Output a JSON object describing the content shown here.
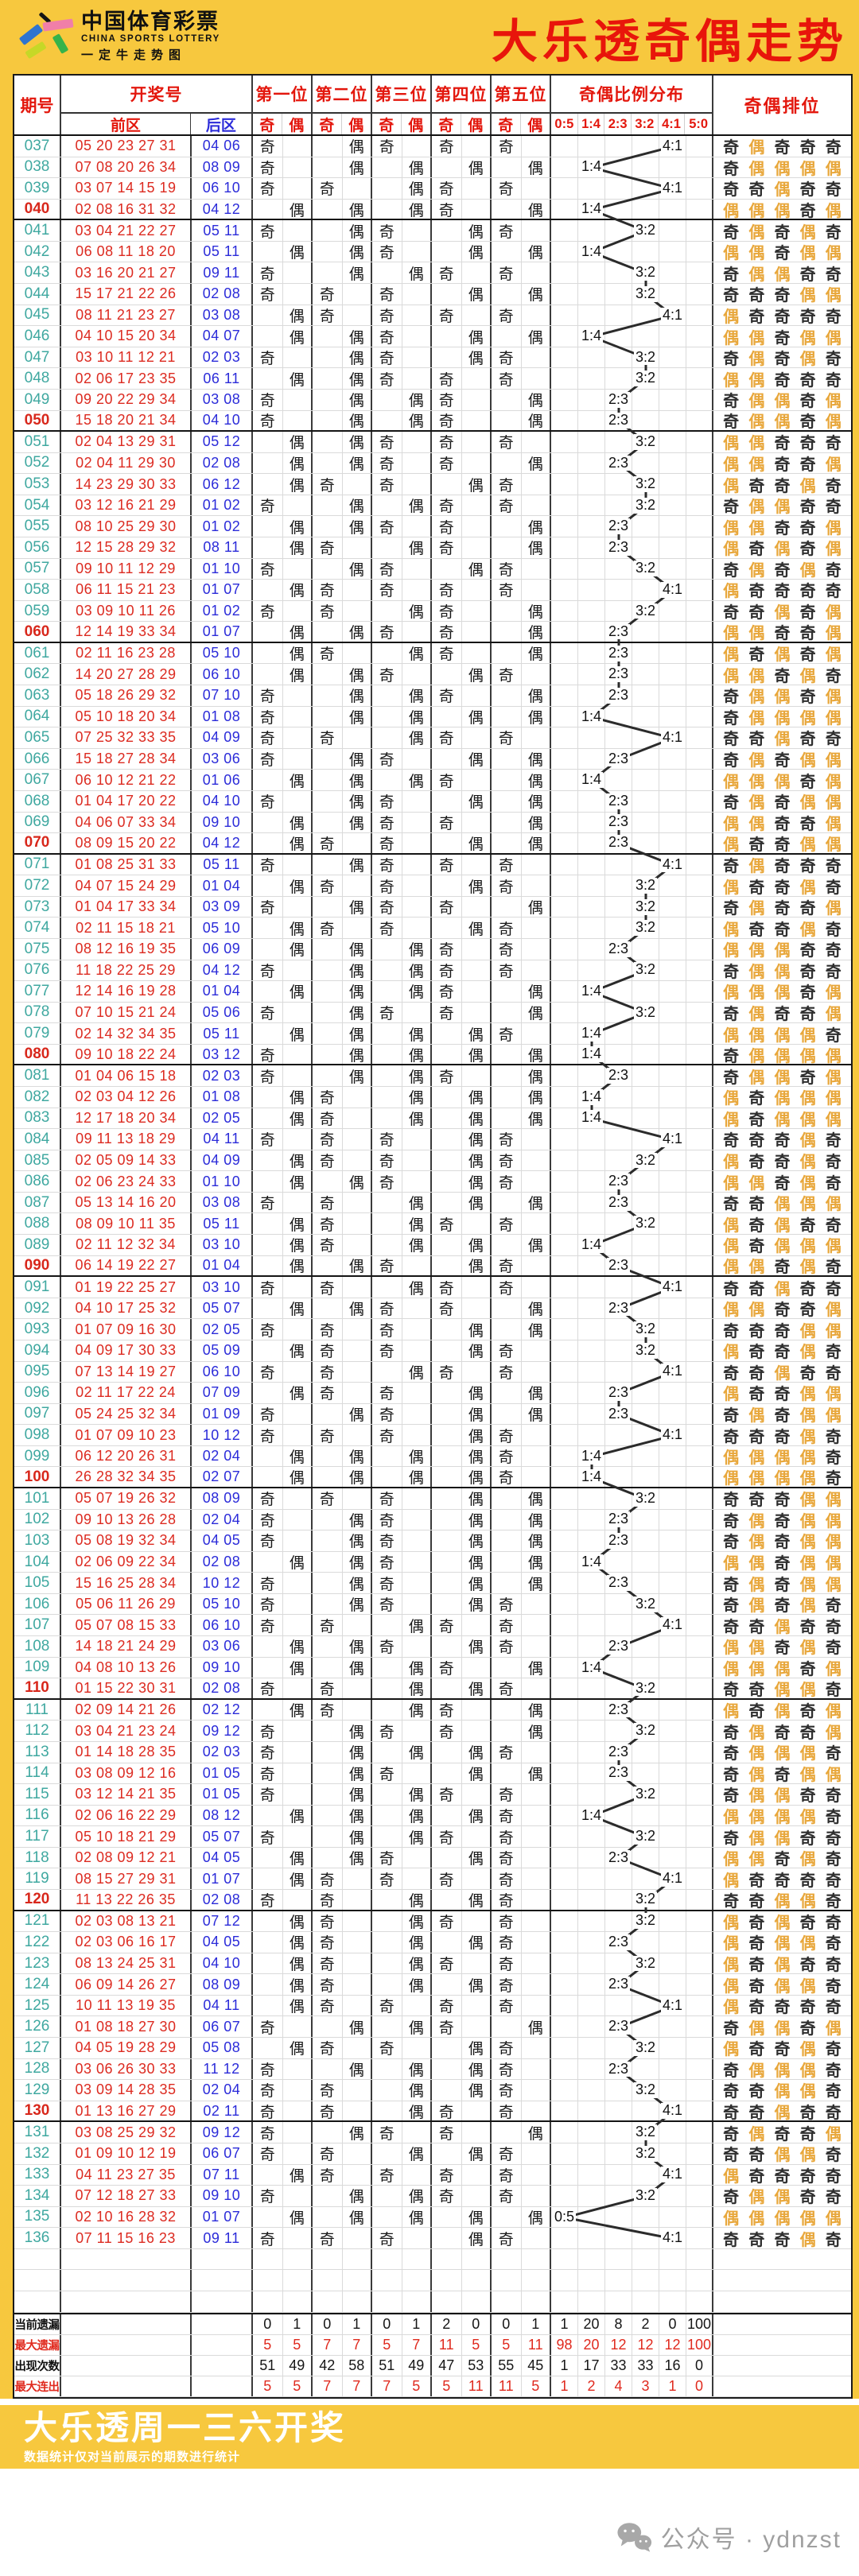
{
  "banner": {
    "logo": {
      "cn": "中国体育彩票",
      "en": "CHINA SPORTS LOTTERY",
      "sub": "一定牛走势图"
    },
    "title": "大乐透奇偶走势"
  },
  "header": {
    "period": "期号",
    "draw": "开奖号",
    "front": "前区",
    "back": "后区",
    "positions": [
      "第一位",
      "第二位",
      "第三位",
      "第四位",
      "第五位"
    ],
    "odd": "奇",
    "even": "偶",
    "ratio_title": "奇偶比例分布",
    "ratios": [
      "0:5",
      "1:4",
      "2:3",
      "3:2",
      "4:1",
      "5:0"
    ],
    "ranking": "奇偶排位"
  },
  "chart_data": {
    "type": "table",
    "title": "大乐透奇偶走势",
    "columns": [
      "期号",
      "前区",
      "后区",
      "第一位奇",
      "第一位偶",
      "第二位奇",
      "第二位偶",
      "第三位奇",
      "第三位偶",
      "第四位奇",
      "第四位偶",
      "第五位奇",
      "第五位偶",
      "0:5",
      "1:4",
      "2:3",
      "3:2",
      "4:1",
      "5:0",
      "奇偶排位"
    ],
    "rows": [
      {
        "p": "037",
        "f": "05 20 23 27 31",
        "b": "04 06"
      },
      {
        "p": "038",
        "f": "07 08 20 26 34",
        "b": "08 09"
      },
      {
        "p": "039",
        "f": "03 07 14 15 19",
        "b": "06 10"
      },
      {
        "p": "040",
        "f": "02 08 16 31 32",
        "b": "04 12"
      },
      {
        "p": "041",
        "f": "03 04 21 22 27",
        "b": "05 11"
      },
      {
        "p": "042",
        "f": "06 08 11 18 20",
        "b": "05 11"
      },
      {
        "p": "043",
        "f": "03 16 20 21 27",
        "b": "09 11"
      },
      {
        "p": "044",
        "f": "15 17 21 22 26",
        "b": "02 08"
      },
      {
        "p": "045",
        "f": "08 11 21 23 27",
        "b": "03 08"
      },
      {
        "p": "046",
        "f": "04 10 15 20 34",
        "b": "04 07"
      },
      {
        "p": "047",
        "f": "03 10 11 12 21",
        "b": "02 03"
      },
      {
        "p": "048",
        "f": "02 06 17 23 35",
        "b": "06 11"
      },
      {
        "p": "049",
        "f": "09 20 22 29 34",
        "b": "03 08"
      },
      {
        "p": "050",
        "f": "15 18 20 21 34",
        "b": "04 10"
      },
      {
        "p": "051",
        "f": "02 04 13 29 31",
        "b": "05 12"
      },
      {
        "p": "052",
        "f": "02 04 11 29 30",
        "b": "02 08"
      },
      {
        "p": "053",
        "f": "14 23 29 30 33",
        "b": "06 12"
      },
      {
        "p": "054",
        "f": "03 12 16 21 29",
        "b": "01 02"
      },
      {
        "p": "055",
        "f": "08 10 25 29 30",
        "b": "01 02"
      },
      {
        "p": "056",
        "f": "12 15 28 29 32",
        "b": "08 11"
      },
      {
        "p": "057",
        "f": "09 10 11 12 29",
        "b": "01 10"
      },
      {
        "p": "058",
        "f": "06 11 15 21 23",
        "b": "01 07"
      },
      {
        "p": "059",
        "f": "03 09 10 11 26",
        "b": "01 02"
      },
      {
        "p": "060",
        "f": "12 14 19 33 34",
        "b": "01 07"
      },
      {
        "p": "061",
        "f": "02 11 16 23 28",
        "b": "05 10"
      },
      {
        "p": "062",
        "f": "14 20 27 28 29",
        "b": "06 10"
      },
      {
        "p": "063",
        "f": "05 18 26 29 32",
        "b": "07 10"
      },
      {
        "p": "064",
        "f": "05 10 18 20 34",
        "b": "01 08"
      },
      {
        "p": "065",
        "f": "07 25 32 33 35",
        "b": "04 09"
      },
      {
        "p": "066",
        "f": "15 18 27 28 34",
        "b": "03 06"
      },
      {
        "p": "067",
        "f": "06 10 12 21 22",
        "b": "01 06"
      },
      {
        "p": "068",
        "f": "01 04 17 20 22",
        "b": "04 10"
      },
      {
        "p": "069",
        "f": "04 06 07 33 34",
        "b": "09 10"
      },
      {
        "p": "070",
        "f": "08 09 15 20 22",
        "b": "04 12"
      },
      {
        "p": "071",
        "f": "01 08 25 31 33",
        "b": "05 11"
      },
      {
        "p": "072",
        "f": "04 07 15 24 29",
        "b": "01 04"
      },
      {
        "p": "073",
        "f": "01 04 17 33 34",
        "b": "03 09"
      },
      {
        "p": "074",
        "f": "02 11 15 18 21",
        "b": "05 10"
      },
      {
        "p": "075",
        "f": "08 12 16 19 35",
        "b": "06 09"
      },
      {
        "p": "076",
        "f": "11 18 22 25 29",
        "b": "04 12"
      },
      {
        "p": "077",
        "f": "12 14 16 19 28",
        "b": "01 04"
      },
      {
        "p": "078",
        "f": "07 10 15 21 24",
        "b": "05 06"
      },
      {
        "p": "079",
        "f": "02 14 32 34 35",
        "b": "05 11"
      },
      {
        "p": "080",
        "f": "09 10 18 22 24",
        "b": "03 12"
      },
      {
        "p": "081",
        "f": "01 04 06 15 18",
        "b": "02 03"
      },
      {
        "p": "082",
        "f": "02 03 04 12 26",
        "b": "01 08"
      },
      {
        "p": "083",
        "f": "12 17 18 20 34",
        "b": "02 05"
      },
      {
        "p": "084",
        "f": "09 11 13 18 29",
        "b": "04 11"
      },
      {
        "p": "085",
        "f": "02 05 09 14 33",
        "b": "04 09"
      },
      {
        "p": "086",
        "f": "02 06 23 24 33",
        "b": "01 10"
      },
      {
        "p": "087",
        "f": "05 13 14 16 20",
        "b": "03 08"
      },
      {
        "p": "088",
        "f": "08 09 10 11 35",
        "b": "05 11"
      },
      {
        "p": "089",
        "f": "02 11 12 32 34",
        "b": "03 10"
      },
      {
        "p": "090",
        "f": "06 14 19 22 27",
        "b": "01 04"
      },
      {
        "p": "091",
        "f": "01 19 22 25 27",
        "b": "03 10"
      },
      {
        "p": "092",
        "f": "04 10 17 25 32",
        "b": "05 07"
      },
      {
        "p": "093",
        "f": "01 07 09 16 30",
        "b": "02 05"
      },
      {
        "p": "094",
        "f": "04 09 17 30 33",
        "b": "05 09"
      },
      {
        "p": "095",
        "f": "07 13 14 19 27",
        "b": "06 10"
      },
      {
        "p": "096",
        "f": "02 11 17 22 24",
        "b": "07 09"
      },
      {
        "p": "097",
        "f": "05 24 25 32 34",
        "b": "01 09"
      },
      {
        "p": "098",
        "f": "01 07 09 10 23",
        "b": "10 12"
      },
      {
        "p": "099",
        "f": "06 12 20 26 31",
        "b": "02 04"
      },
      {
        "p": "100",
        "f": "26 28 32 34 35",
        "b": "02 07"
      },
      {
        "p": "101",
        "f": "05 07 19 26 32",
        "b": "08 09"
      },
      {
        "p": "102",
        "f": "09 10 13 26 28",
        "b": "02 04"
      },
      {
        "p": "103",
        "f": "05 08 19 32 34",
        "b": "04 05"
      },
      {
        "p": "104",
        "f": "02 06 09 22 34",
        "b": "02 08"
      },
      {
        "p": "105",
        "f": "15 16 25 28 34",
        "b": "10 12"
      },
      {
        "p": "106",
        "f": "05 06 11 26 29",
        "b": "05 10"
      },
      {
        "p": "107",
        "f": "05 07 08 15 33",
        "b": "06 10"
      },
      {
        "p": "108",
        "f": "14 18 21 24 29",
        "b": "03 06"
      },
      {
        "p": "109",
        "f": "04 08 10 13 26",
        "b": "09 10"
      },
      {
        "p": "110",
        "f": "01 15 22 30 31",
        "b": "02 08"
      },
      {
        "p": "111",
        "f": "02 09 14 21 26",
        "b": "02 12"
      },
      {
        "p": "112",
        "f": "03 04 21 23 24",
        "b": "09 12"
      },
      {
        "p": "113",
        "f": "01 14 18 28 35",
        "b": "02 03"
      },
      {
        "p": "114",
        "f": "03 08 09 12 16",
        "b": "01 05"
      },
      {
        "p": "115",
        "f": "03 12 14 21 35",
        "b": "01 05"
      },
      {
        "p": "116",
        "f": "02 06 16 22 29",
        "b": "08 12"
      },
      {
        "p": "117",
        "f": "05 10 18 21 29",
        "b": "05 07"
      },
      {
        "p": "118",
        "f": "02 08 09 12 21",
        "b": "04 05"
      },
      {
        "p": "119",
        "f": "08 15 27 29 31",
        "b": "01 07"
      },
      {
        "p": "120",
        "f": "11 13 22 26 35",
        "b": "02 08"
      },
      {
        "p": "121",
        "f": "02 03 08 13 21",
        "b": "07 12"
      },
      {
        "p": "122",
        "f": "02 03 06 16 17",
        "b": "04 05"
      },
      {
        "p": "123",
        "f": "08 13 24 25 31",
        "b": "04 10"
      },
      {
        "p": "124",
        "f": "06 09 14 26 27",
        "b": "08 09"
      },
      {
        "p": "125",
        "f": "10 11 13 19 35",
        "b": "04 11"
      },
      {
        "p": "126",
        "f": "01 08 18 27 30",
        "b": "06 07"
      },
      {
        "p": "127",
        "f": "04 05 19 28 29",
        "b": "05 08"
      },
      {
        "p": "128",
        "f": "03 06 26 30 33",
        "b": "11 12"
      },
      {
        "p": "129",
        "f": "03 09 14 28 35",
        "b": "02 04"
      },
      {
        "p": "130",
        "f": "01 13 16 27 29",
        "b": "02 11"
      },
      {
        "p": "131",
        "f": "03 08 25 29 32",
        "b": "09 12"
      },
      {
        "p": "132",
        "f": "01 09 10 12 19",
        "b": "06 07"
      },
      {
        "p": "133",
        "f": "04 11 23 27 35",
        "b": "07 11"
      },
      {
        "p": "134",
        "f": "07 12 18 27 33",
        "b": "09 10"
      },
      {
        "p": "135",
        "f": "02 10 16 28 32",
        "b": "01 07"
      },
      {
        "p": "136",
        "f": "07 11 15 16 23",
        "b": "09 11"
      }
    ],
    "summary": [
      {
        "label": "当前遗漏",
        "red": false,
        "values": [
          0,
          1,
          0,
          1,
          0,
          1,
          2,
          0,
          0,
          1,
          1,
          20,
          8,
          2,
          0,
          100
        ]
      },
      {
        "label": "最大遗漏",
        "red": true,
        "values": [
          5,
          5,
          7,
          7,
          5,
          7,
          11,
          5,
          5,
          11,
          98,
          20,
          12,
          12,
          12,
          100
        ]
      },
      {
        "label": "出现次数",
        "red": false,
        "values": [
          51,
          49,
          42,
          58,
          51,
          49,
          47,
          53,
          55,
          45,
          1,
          17,
          33,
          33,
          16,
          0
        ]
      },
      {
        "label": "最大连出",
        "red": true,
        "values": [
          5,
          5,
          7,
          7,
          7,
          5,
          5,
          11,
          11,
          5,
          1,
          2,
          4,
          3,
          1,
          0
        ]
      }
    ]
  },
  "footer": {
    "title": "大乐透周一三六开奖",
    "note": "数据统计仅对当前展示的期数进行统计",
    "wechat": "公众号 · ydnzst"
  },
  "colors": {
    "banner-yellow": "#F7C83E",
    "title-red": "#E8150B",
    "header-red": "#E3170D",
    "period-teal": "#3FA8A0",
    "period-red": "#D8271B",
    "number-red": "#DC2A20",
    "back-blue": "#2B2BD9",
    "even-orange": "#E8A73B",
    "summary-red": "#E02A1E",
    "line-dark": "#2b2b2b"
  }
}
